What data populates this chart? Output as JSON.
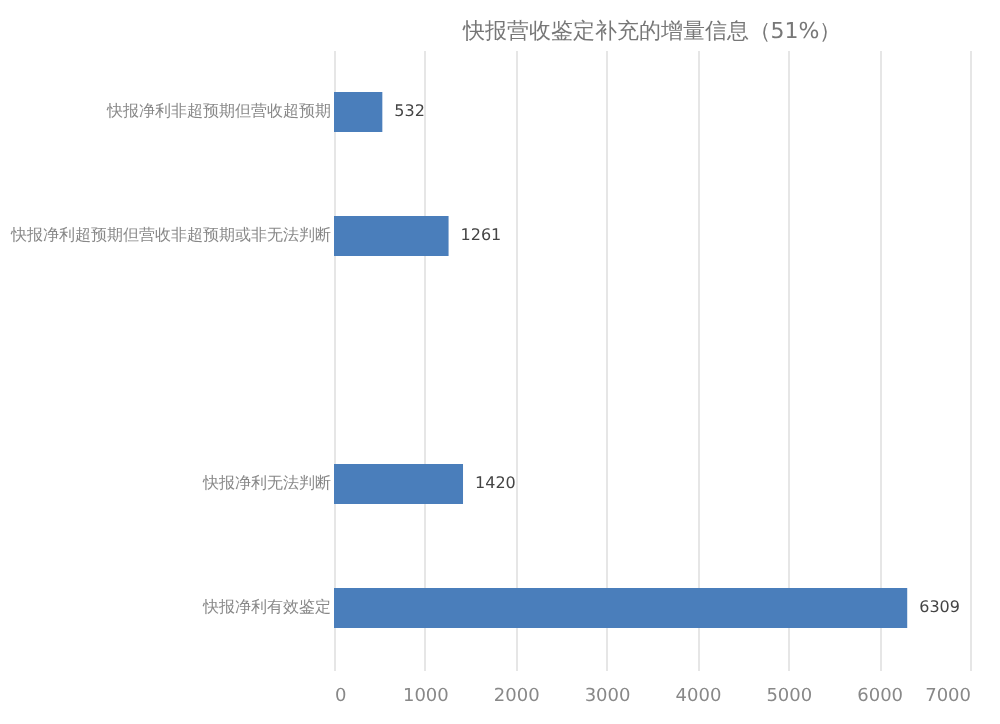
{
  "chart_data": {
    "type": "bar",
    "orientation": "horizontal",
    "title": "快报营收鉴定补充的增量信息（51%）",
    "categories": [
      "快报净利非超预期但营收超预期",
      "快报净利超预期但营收非超预期或非无法判断",
      null,
      "快报净利无法判断",
      "快报净利有效鉴定"
    ],
    "values": [
      532,
      1261,
      null,
      1420,
      6309
    ],
    "color": "#4a7ebb",
    "xlim": [
      0,
      7000
    ],
    "xticks": [
      0,
      1000,
      2000,
      3000,
      4000,
      5000,
      6000,
      7000
    ],
    "grid": "x",
    "data_labels": true
  }
}
